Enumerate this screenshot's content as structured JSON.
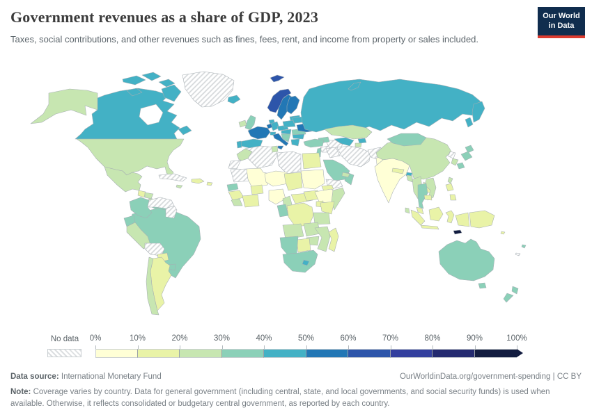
{
  "header": {
    "title": "Government revenues as a share of GDP, 2023",
    "subtitle": "Taxes, social contributions, and other revenues such as fines, fees, rent, and income from property or sales included.",
    "logo": {
      "line1": "Our World",
      "line2": "in Data",
      "bg": "#102d4e",
      "accent": "#dc3b2f"
    }
  },
  "legend": {
    "no_data_label": "No data",
    "ticks": [
      "0%",
      "10%",
      "20%",
      "30%",
      "40%",
      "50%",
      "60%",
      "70%",
      "80%",
      "90%",
      "100%"
    ],
    "bins": [
      {
        "range": "0-10%",
        "color": "#ffffd6"
      },
      {
        "range": "10-20%",
        "color": "#e9f3a7"
      },
      {
        "range": "20-30%",
        "color": "#c7e6b1"
      },
      {
        "range": "30-40%",
        "color": "#8bd0b8"
      },
      {
        "range": "40-50%",
        "color": "#43b1c5"
      },
      {
        "range": "50-60%",
        "color": "#2277b5"
      },
      {
        "range": "60-70%",
        "color": "#2d55aa"
      },
      {
        "range": "70-80%",
        "color": "#333f9e"
      },
      {
        "range": "80-90%",
        "color": "#242a70"
      },
      {
        "range": "90-100%",
        "color": "#121c40"
      }
    ]
  },
  "footer": {
    "source_label": "Data source:",
    "source": "International Monetary Fund",
    "link_text": "OurWorldinData.org/government-spending",
    "separator": "|",
    "license_text": "CC BY",
    "note_label": "Note:",
    "note": "Coverage varies by country. Data for general government (including central, state, and local governments, and social security funds) is used when available. Otherwise, it reflects consolidated or budgetary central government, as reported by each country."
  },
  "chart_data": {
    "type": "heatmap",
    "subtype": "world-choropleth",
    "title": "Government revenues as a share of GDP, 2023",
    "unit": "% of GDP",
    "legend_position": "bottom",
    "no_data_label": "No data",
    "palette": {
      "0-10": "#ffffd6",
      "10-20": "#e9f3a7",
      "20-30": "#c7e6b1",
      "30-40": "#8bd0b8",
      "40-50": "#43b1c5",
      "50-60": "#2277b5",
      "60-70": "#2d55aa",
      "70-80": "#333f9e",
      "80-90": "#242a70",
      "90-100": "#121c40",
      "no-data": "hatch"
    },
    "regions": {
      "alaska": "20-30",
      "canada": "40-50",
      "greenland": "no-data",
      "iceland": "40-50",
      "usa": "20-30",
      "mexico": "20-30",
      "guatemala": "10-20",
      "honduras": "20-30",
      "nicaragua": "20-30",
      "costa-rica": "30-40",
      "panama": "30-40",
      "cuba": "no-data",
      "hispaniola": "10-20",
      "jamaica": "20-30",
      "puerto-rico": "10-20",
      "colombia": "30-40",
      "venezuela": "no-data",
      "guyanas": "no-data",
      "ecuador": "30-40",
      "peru": "20-30",
      "brazil": "30-40",
      "bolivia": "no-data",
      "paraguay": "10-20",
      "uruguay": "30-40",
      "argentina": "10-20",
      "chile": "20-30",
      "norway": "60-70",
      "svalbard": "60-70",
      "sweden": "50-60",
      "finland": "50-60",
      "denmark": "40-50",
      "baltics": "40-50",
      "uk": "30-40",
      "ireland": "20-30",
      "france": "50-60",
      "spain": "40-50",
      "portugal": "40-50",
      "germany": "40-50",
      "benelux": "50-60",
      "switzerland": "40-50",
      "italy": "50-60",
      "austria-czechia": "40-50",
      "poland": "40-50",
      "hungary-slovakia": "40-50",
      "balkans": "30-40",
      "romania": "30-40",
      "bulgaria": "40-50",
      "greece": "40-50",
      "ukraine": "50-60",
      "belarus": "40-50",
      "russia": "40-50",
      "novaya-zemlya": "40-50",
      "kamchatka": "40-50",
      "sakhalin": "40-50",
      "kazakhstan": "20-30",
      "uzbekistan": "40-50",
      "turkmenistan": "no-data",
      "kyrgyzstan": "40-50",
      "tajikistan": "20-30",
      "caucasus": "30-40",
      "turkey": "30-40",
      "syria": "no-data",
      "israel-jordan": "30-40",
      "iraq": "no-data",
      "iran": "no-data",
      "afghanistan": "no-data",
      "pakistan": "0-10",
      "saudi-arabia": "30-40",
      "yemen": "no-data",
      "oman": "30-40",
      "uae": "20-30",
      "morocco": "20-30",
      "western-sahara": "no-data",
      "algeria": "no-data",
      "tunisia": "20-30",
      "libya": "no-data",
      "egypt": "10-20",
      "mauritania": "no-data",
      "mali": "0-10",
      "senegal": "30-40",
      "guinea": "10-20",
      "sierra-leone-liberia": "20-30",
      "ivory-coast-ghana": "10-20",
      "burkina-faso": "10-20",
      "niger": "0-10",
      "nigeria": "0-10",
      "chad": "10-20",
      "sudan": "0-10",
      "eritrea": "10-20",
      "ethiopia": "0-10",
      "somalia": "20-30",
      "cameroon": "20-30",
      "central-african-republic": "10-20",
      "south-sudan": "10-20",
      "uganda": "10-20",
      "kenya": "10-20",
      "tanzania": "20-30",
      "drc": "10-20",
      "gabon-congo": "30-40",
      "angola": "20-30",
      "zambia": "20-30",
      "mozambique": "20-30",
      "zimbabwe": "20-30",
      "botswana": "10-20",
      "namibia": "30-40",
      "south-africa": "30-40",
      "lesotho": "40-50",
      "madagascar": "10-20",
      "india": "0-10",
      "nepal": "10-20",
      "bhutan": "40-50",
      "bangladesh": "20-30",
      "sri-lanka": "20-30",
      "china": "20-30",
      "mongolia": "30-40",
      "north-korea": "no-data",
      "south-korea": "20-30",
      "japan": "30-40",
      "taiwan": "20-30",
      "myanmar": "20-30",
      "thailand": "30-40",
      "laos": "10-20",
      "vietnam": "20-30",
      "cambodia": "10-20",
      "malaysia": "10-20",
      "philippines": "10-20",
      "indonesia": "10-20",
      "papua-new-guinea": "10-20",
      "timor-leste": "90-100",
      "solomon-islands": "10-20",
      "new-caledonia": "no-data",
      "fiji": "30-40",
      "australia": "30-40",
      "tasmania": "30-40",
      "new-zealand": "30-40"
    }
  }
}
